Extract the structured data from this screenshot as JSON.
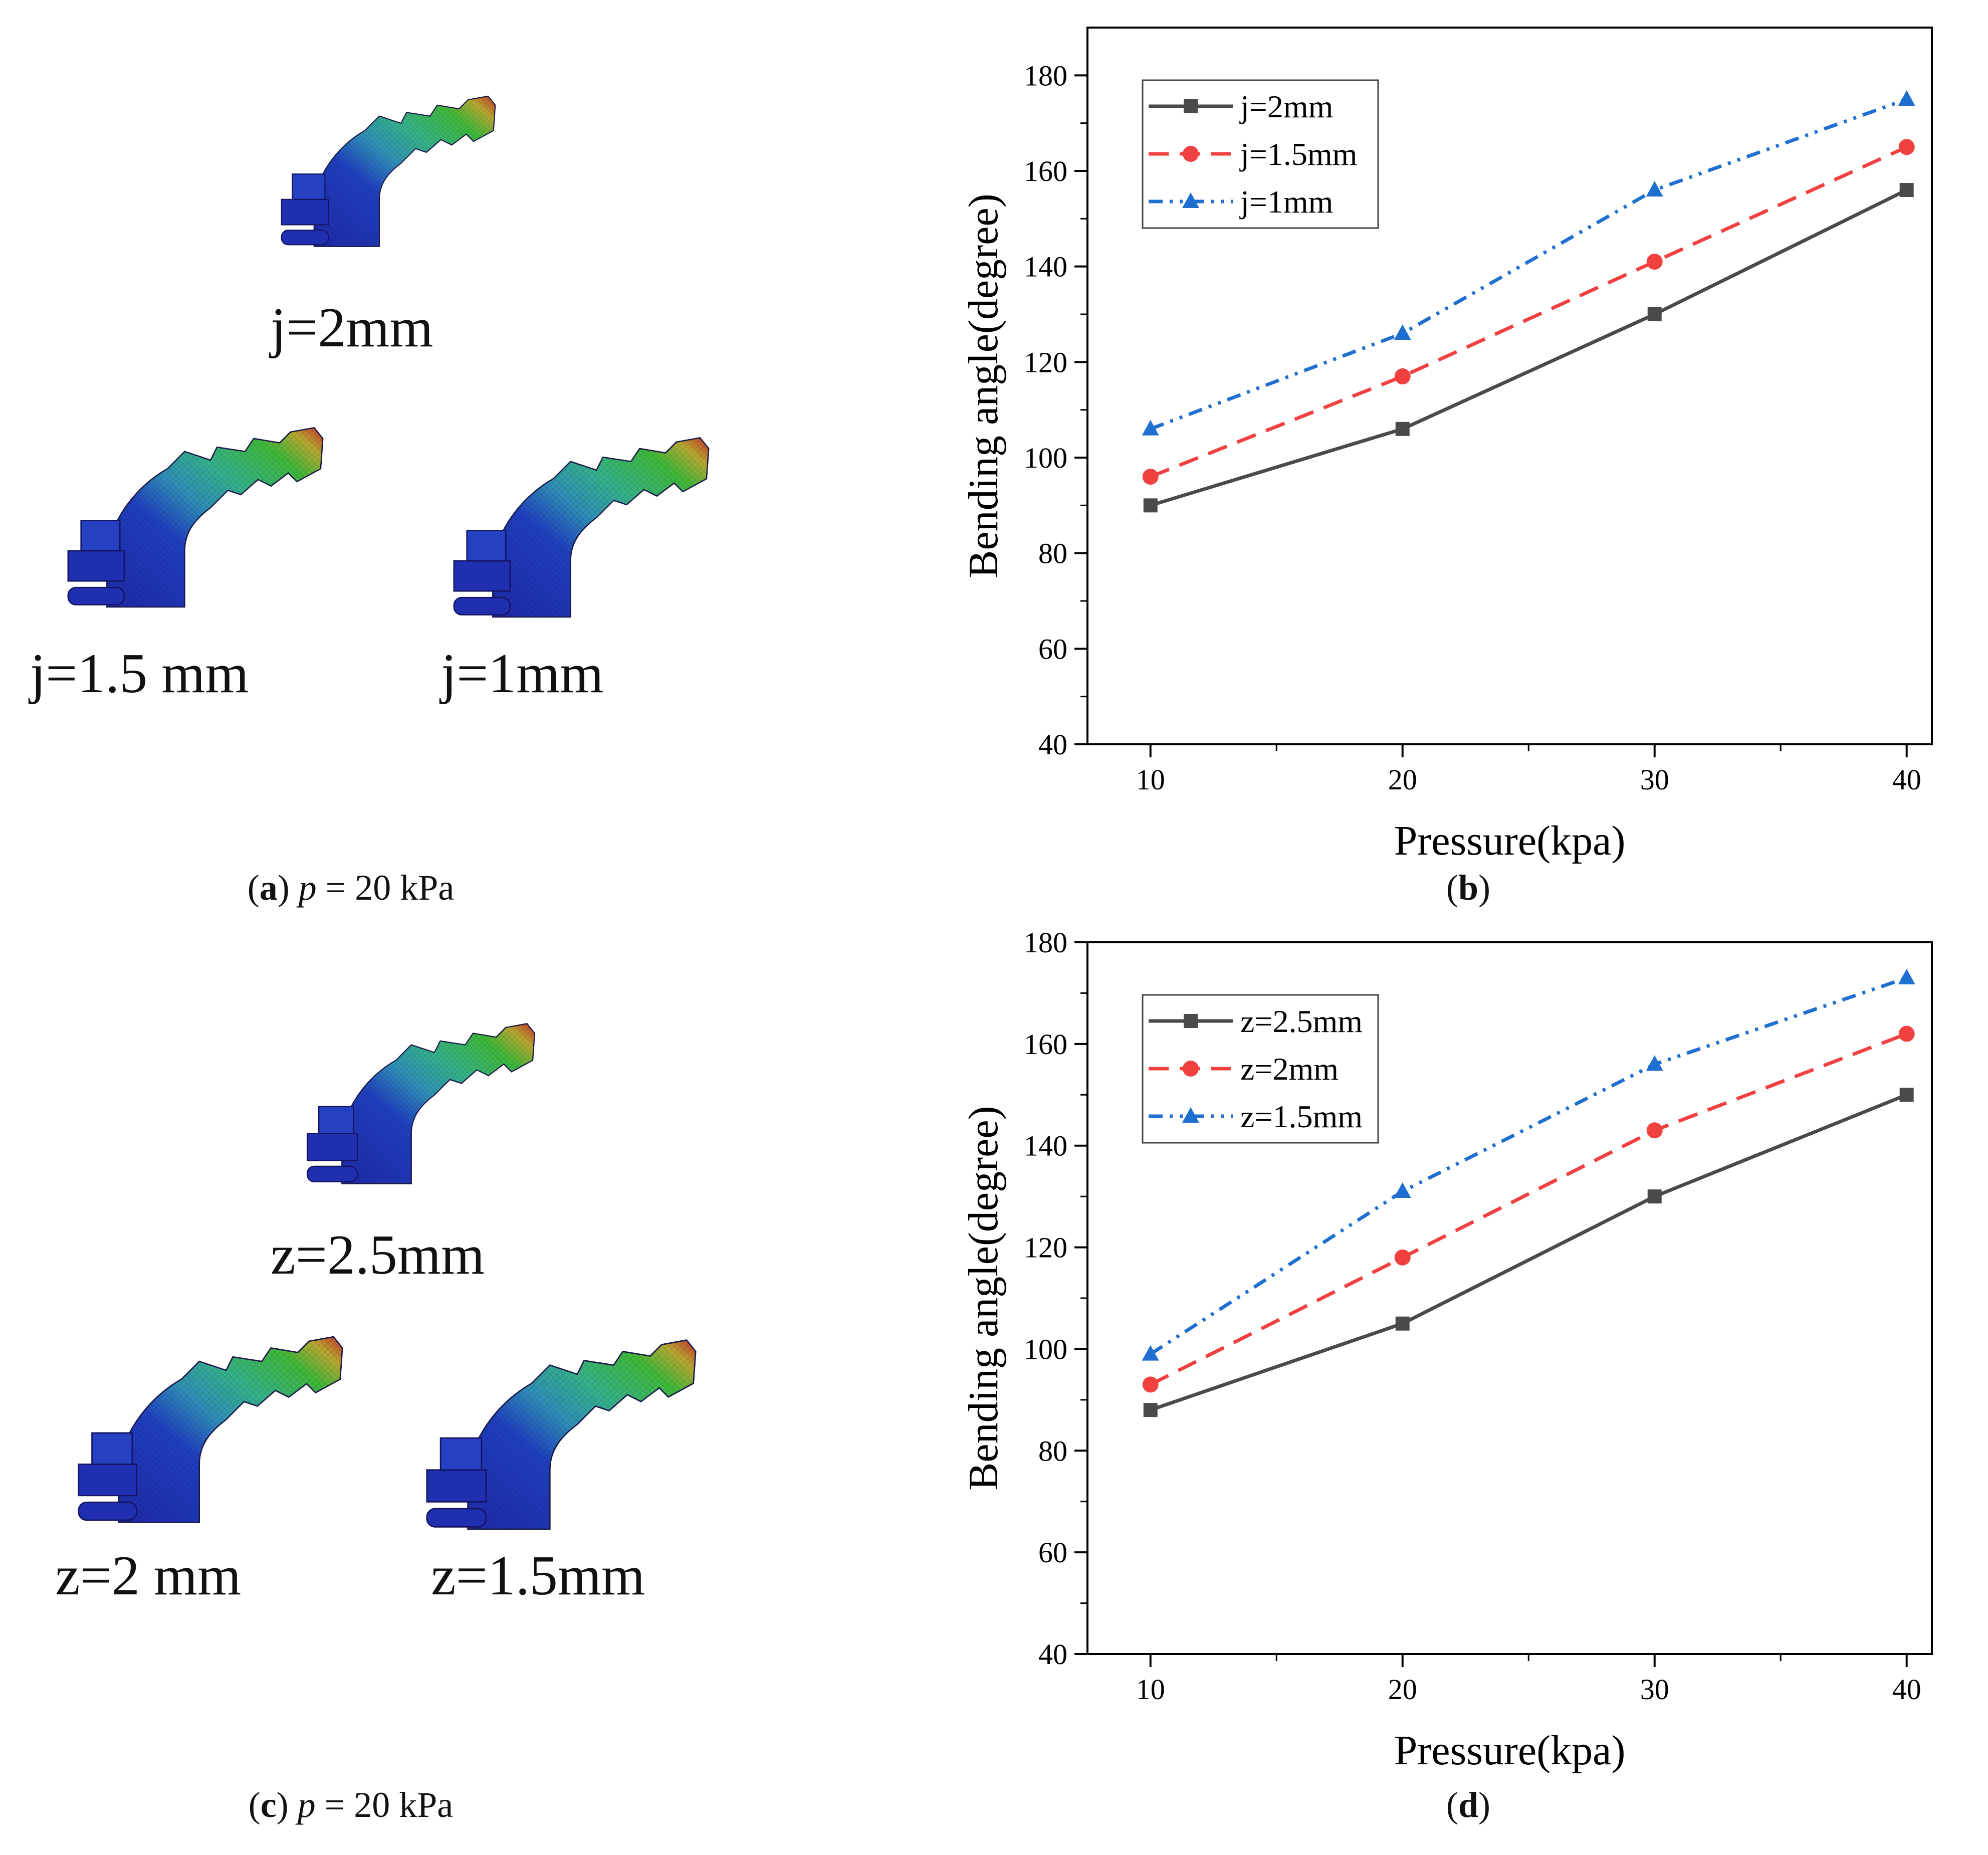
{
  "panel_a": {
    "labels": [
      "j=2mm",
      "j=1.5 mm",
      "j=1mm"
    ],
    "caption_letter": "a",
    "caption_var": "p",
    "caption_rest": " = 20 kPa"
  },
  "panel_b": {
    "caption_letter": "b"
  },
  "panel_c": {
    "labels": [
      "z=2.5mm",
      "z=2 mm",
      "z=1.5mm"
    ],
    "caption_letter": "c",
    "caption_var": "p",
    "caption_rest": " = 20 kPa"
  },
  "panel_d": {
    "caption_letter": "d"
  },
  "colors": {
    "series1": "#4a4a4a",
    "series2": "#f0403f",
    "series3": "#1e6fd0"
  },
  "chart_data": [
    {
      "type": "line",
      "title": "",
      "xlabel": "Pressure(kpa)",
      "ylabel": "Bending angle(degree)",
      "x": [
        10,
        20,
        30,
        40
      ],
      "xlim": [
        7.5,
        41
      ],
      "ylim": [
        40,
        190
      ],
      "xticks": [
        10,
        20,
        30,
        40
      ],
      "yticks": [
        40,
        60,
        80,
        100,
        120,
        140,
        160,
        180
      ],
      "legend_position": "top-left",
      "series": [
        {
          "name": "j=2mm",
          "values": [
            90,
            106,
            130,
            156
          ],
          "marker": "square",
          "dash": "solid",
          "color": "#4a4a4a"
        },
        {
          "name": "j=1.5mm",
          "values": [
            96,
            117,
            141,
            165
          ],
          "marker": "circle",
          "dash": "dash",
          "color": "#f0403f"
        },
        {
          "name": "j=1mm",
          "values": [
            106,
            126,
            156,
            175
          ],
          "marker": "triangle",
          "dash": "dashdotdot",
          "color": "#1e6fd0"
        }
      ]
    },
    {
      "type": "line",
      "title": "",
      "xlabel": "Pressure(kpa)",
      "ylabel": "Bending angle(degree)",
      "x": [
        10,
        20,
        30,
        40
      ],
      "xlim": [
        7.5,
        41
      ],
      "ylim": [
        40,
        180
      ],
      "xticks": [
        10,
        20,
        30,
        40
      ],
      "yticks": [
        40,
        60,
        80,
        100,
        120,
        140,
        160,
        180
      ],
      "legend_position": "top-left",
      "series": [
        {
          "name": "z=2.5mm",
          "values": [
            88,
            105,
            130,
            150
          ],
          "marker": "square",
          "dash": "solid",
          "color": "#4a4a4a"
        },
        {
          "name": "z=2mm",
          "values": [
            93,
            118,
            143,
            162
          ],
          "marker": "circle",
          "dash": "dash",
          "color": "#f0403f"
        },
        {
          "name": "z=1.5mm",
          "values": [
            99,
            131,
            156,
            173
          ],
          "marker": "triangle",
          "dash": "dashdotdot",
          "color": "#1e6fd0"
        }
      ]
    }
  ]
}
